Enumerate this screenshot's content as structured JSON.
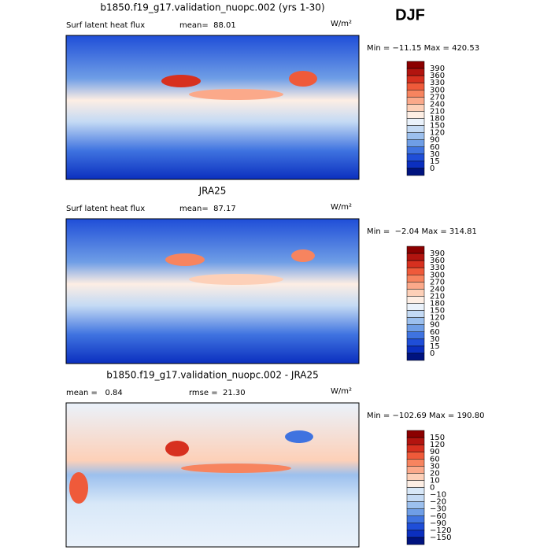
{
  "header": "DJF",
  "panels": [
    {
      "title": "b1850.f19_g17.validation_nuopc.002 (yrs 1-30)",
      "left_label": "Surf latent heat flux",
      "stat_label": "mean=  88.01",
      "units": "W/m²",
      "min_max": "Min = −11.15 Max = 420.53",
      "colorbar": {
        "labels": [
          "390",
          "360",
          "330",
          "300",
          "270",
          "240",
          "210",
          "180",
          "150",
          "120",
          "90",
          "60",
          "30",
          "15",
          "0"
        ],
        "colors": [
          "#8b0000",
          "#b2140f",
          "#d7301f",
          "#ef5a3a",
          "#f7845f",
          "#fba98a",
          "#fdd0b8",
          "#fdeee4",
          "#eaf2fb",
          "#c4daf4",
          "#9cc0ee",
          "#6f9ee6",
          "#3f73e0",
          "#1f4ed8",
          "#0b2fbf",
          "#00137f"
        ]
      }
    },
    {
      "title": "JRA25",
      "left_label": "Surf latent heat flux",
      "stat_label": "mean=  87.17",
      "units": "W/m²",
      "min_max": "Min =  −2.04 Max = 314.81",
      "colorbar": {
        "labels": [
          "390",
          "360",
          "330",
          "300",
          "270",
          "240",
          "210",
          "180",
          "150",
          "120",
          "90",
          "60",
          "30",
          "15",
          "0"
        ],
        "colors": [
          "#8b0000",
          "#b2140f",
          "#d7301f",
          "#ef5a3a",
          "#f7845f",
          "#fba98a",
          "#fdd0b8",
          "#fdeee4",
          "#eaf2fb",
          "#c4daf4",
          "#9cc0ee",
          "#6f9ee6",
          "#3f73e0",
          "#1f4ed8",
          "#0b2fbf",
          "#00137f"
        ]
      }
    },
    {
      "title": "b1850.f19_g17.validation_nuopc.002 - JRA25",
      "left_label": "mean =   0.84",
      "stat_label": "rmse =  21.30",
      "units": "W/m²",
      "min_max": "Min = −102.69 Max = 190.80",
      "colorbar": {
        "labels": [
          "150",
          "120",
          "90",
          "60",
          "30",
          "20",
          "10",
          "0",
          "−10",
          "−20",
          "−30",
          "−60",
          "−90",
          "−120",
          "−150"
        ],
        "colors": [
          "#8b0000",
          "#b2140f",
          "#d7301f",
          "#ef5a3a",
          "#f7845f",
          "#fba98a",
          "#fdd0b8",
          "#fdeee4",
          "#d8e8f8",
          "#c4daf4",
          "#9cc0ee",
          "#6f9ee6",
          "#3f73e0",
          "#1f4ed8",
          "#0b2fbf",
          "#00137f"
        ]
      }
    }
  ]
}
